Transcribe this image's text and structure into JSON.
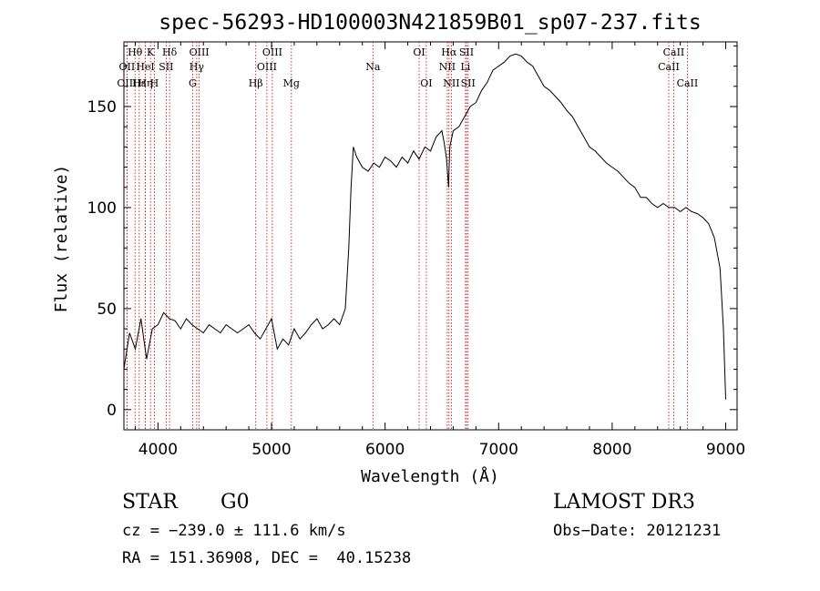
{
  "chart_data": {
    "type": "line",
    "title": "spec-56293-HD100003N421859B01_sp07-237.fits",
    "xlabel": "Wavelength (Å)",
    "ylabel": "Flux (relative)",
    "xlim": [
      3700,
      9100
    ],
    "ylim": [
      -10,
      182
    ],
    "xticks": [
      4000,
      5000,
      6000,
      7000,
      8000,
      9000
    ],
    "yticks": [
      0,
      50,
      100,
      150
    ],
    "series": [
      {
        "name": "flux",
        "x": [
          3700,
          3750,
          3800,
          3850,
          3900,
          3950,
          4000,
          4050,
          4100,
          4150,
          4200,
          4250,
          4300,
          4350,
          4400,
          4450,
          4500,
          4550,
          4600,
          4650,
          4700,
          4750,
          4800,
          4850,
          4900,
          4950,
          5000,
          5050,
          5100,
          5150,
          5200,
          5250,
          5300,
          5350,
          5400,
          5450,
          5500,
          5550,
          5600,
          5650,
          5680,
          5700,
          5720,
          5750,
          5800,
          5850,
          5900,
          5950,
          6000,
          6050,
          6100,
          6150,
          6200,
          6250,
          6300,
          6350,
          6400,
          6450,
          6500,
          6520,
          6540,
          6560,
          6563,
          6570,
          6600,
          6650,
          6700,
          6750,
          6800,
          6850,
          6900,
          6950,
          7000,
          7050,
          7100,
          7150,
          7200,
          7250,
          7300,
          7350,
          7400,
          7450,
          7500,
          7550,
          7600,
          7650,
          7700,
          7750,
          7800,
          7850,
          7900,
          7950,
          8000,
          8050,
          8100,
          8150,
          8200,
          8250,
          8300,
          8350,
          8400,
          8450,
          8500,
          8550,
          8600,
          8650,
          8700,
          8750,
          8800,
          8850,
          8900,
          8950,
          8980,
          9000
        ],
        "y": [
          20,
          38,
          30,
          45,
          25,
          40,
          42,
          48,
          45,
          44,
          40,
          45,
          42,
          40,
          38,
          42,
          40,
          38,
          42,
          40,
          38,
          40,
          42,
          38,
          35,
          40,
          45,
          30,
          35,
          32,
          40,
          35,
          38,
          42,
          45,
          40,
          42,
          45,
          42,
          50,
          80,
          110,
          130,
          125,
          120,
          118,
          122,
          120,
          125,
          123,
          120,
          125,
          122,
          128,
          124,
          130,
          128,
          135,
          138,
          132,
          125,
          110,
          118,
          130,
          138,
          140,
          145,
          150,
          152,
          158,
          162,
          168,
          170,
          172,
          175,
          176,
          175,
          172,
          170,
          165,
          160,
          158,
          155,
          152,
          148,
          145,
          140,
          135,
          130,
          128,
          125,
          122,
          120,
          118,
          115,
          112,
          110,
          105,
          105,
          102,
          100,
          102,
          100,
          100,
          98,
          100,
          98,
          97,
          95,
          92,
          85,
          70,
          40,
          5
        ]
      }
    ],
    "lines": [
      {
        "label": "Hθ",
        "x": 3798,
        "row": 1
      },
      {
        "label": "OII",
        "x": 3727,
        "row": 2
      },
      {
        "label": "OIII",
        "x": 3727,
        "row": 3
      },
      {
        "label": "Hε",
        "x": 3835,
        "row": 3
      },
      {
        "label": "HeI",
        "x": 3889,
        "row": 2
      },
      {
        "label": "Hη",
        "x": 3889,
        "row": 3
      },
      {
        "label": "K",
        "x": 3934,
        "row": 1
      },
      {
        "label": "H",
        "x": 3968,
        "row": 3
      },
      {
        "label": "Hδ",
        "x": 4102,
        "row": 1
      },
      {
        "label": "SII",
        "x": 4072,
        "row": 2
      },
      {
        "label": "OIII",
        "x": 4363,
        "row": 1
      },
      {
        "label": "Hγ",
        "x": 4341,
        "row": 2
      },
      {
        "label": "G",
        "x": 4305,
        "row": 3
      },
      {
        "label": "Hβ",
        "x": 4861,
        "row": 3
      },
      {
        "label": "OIII",
        "x": 4959,
        "row": 2
      },
      {
        "label": "OIII",
        "x": 5007,
        "row": 1
      },
      {
        "label": "Mg",
        "x": 5175,
        "row": 3
      },
      {
        "label": "Na",
        "x": 5893,
        "row": 2
      },
      {
        "label": "OI",
        "x": 6300,
        "row": 1
      },
      {
        "label": "OI",
        "x": 6363,
        "row": 3
      },
      {
        "label": "Hα",
        "x": 6563,
        "row": 1
      },
      {
        "label": "NII",
        "x": 6548,
        "row": 2
      },
      {
        "label": "NII",
        "x": 6584,
        "row": 3
      },
      {
        "label": "SII",
        "x": 6717,
        "row": 1
      },
      {
        "label": "SII",
        "x": 6731,
        "row": 3
      },
      {
        "label": "Li",
        "x": 6708,
        "row": 2
      },
      {
        "label": "CaII",
        "x": 8542,
        "row": 1
      },
      {
        "label": "CaII",
        "x": 8498,
        "row": 2
      },
      {
        "label": "CaII",
        "x": 8662,
        "row": 3
      }
    ]
  },
  "info": {
    "class_label": "STAR",
    "subclass": "G0",
    "survey": "LAMOST DR3",
    "cz": "cz = −239.0 ± 111.6 km/s",
    "obs_date": "Obs−Date: 20121231",
    "coords": "RA = 151.36908, DEC =  40.15238"
  }
}
